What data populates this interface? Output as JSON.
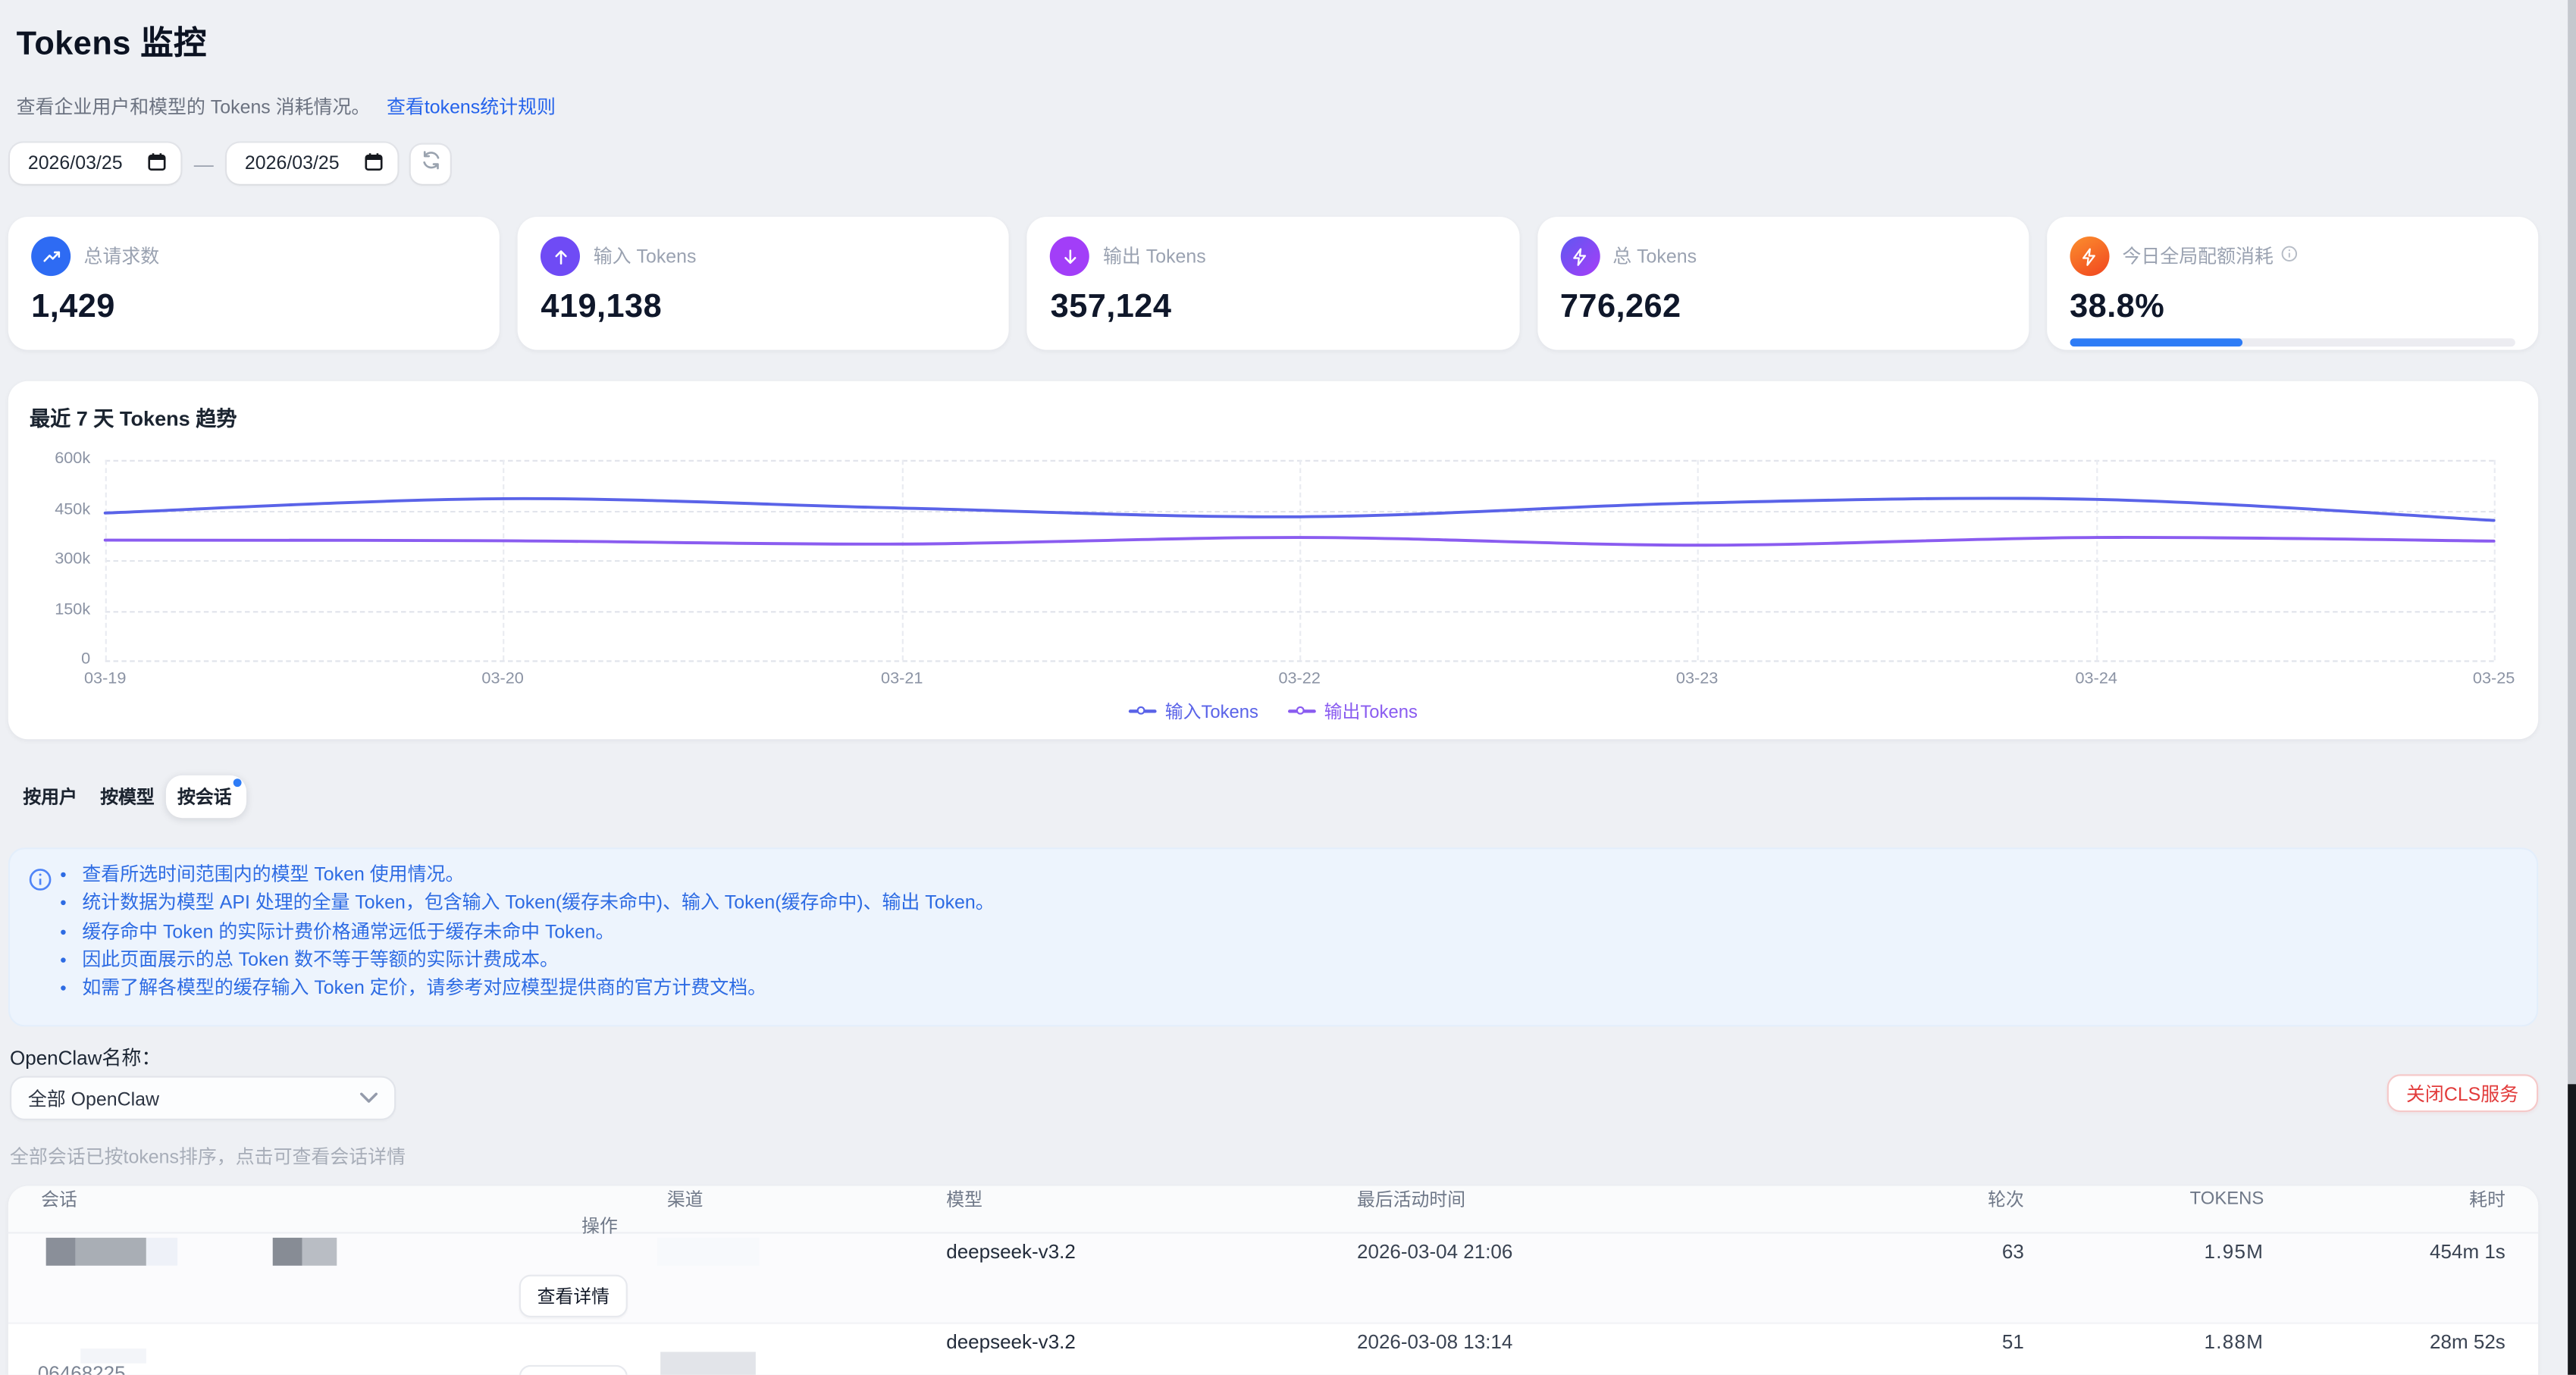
{
  "header": {
    "title": "Tokens 监控",
    "subtitle": "查看企业用户和模型的 Tokens 消耗情况。",
    "rules_link": "查看tokens统计规则"
  },
  "date_filter": {
    "start": "2026/03/25",
    "end": "2026/03/25",
    "separator": "—"
  },
  "stats": [
    {
      "label": "总请求数",
      "value": "1,429",
      "icon": "trending-up-icon",
      "icon_bg": "#2e6bf3"
    },
    {
      "label": "输入 Tokens",
      "value": "419,138",
      "icon": "arrow-up-icon",
      "icon_bg": "#6f4bf5"
    },
    {
      "label": "输出 Tokens",
      "value": "357,124",
      "icon": "arrow-down-icon",
      "icon_bg": "#a23ef8"
    },
    {
      "label": "总 Tokens",
      "value": "776,262",
      "icon": "zap-icon",
      "icon_bg": "linear-gradient(135deg,#5f58f0,#a63ef8)"
    },
    {
      "label": "今日全局配额消耗",
      "value": "38.8%",
      "icon": "zap-icon",
      "icon_bg": "linear-gradient(150deg,#fb8f2e,#f1451f)",
      "progress_percent": 38.8
    }
  ],
  "chart_data": {
    "type": "line",
    "title": "最近 7 天 Tokens 趋势",
    "x": [
      "03-19",
      "03-20",
      "03-21",
      "03-22",
      "03-23",
      "03-24",
      "03-25"
    ],
    "series": [
      {
        "name": "输入Tokens",
        "color": "#5a63e8",
        "values": [
          441000,
          484000,
          456000,
          430000,
          471000,
          482000,
          419138
        ]
      },
      {
        "name": "输出Tokens",
        "color": "#8a5cf0",
        "values": [
          360000,
          358000,
          348000,
          368000,
          345000,
          368000,
          357124
        ]
      }
    ],
    "ylim": [
      0,
      600000
    ],
    "yticks": [
      "600k",
      "450k",
      "300k",
      "150k",
      "0"
    ],
    "grid": "dashed",
    "smooth": true,
    "legend_position": "bottom"
  },
  "tabs": [
    {
      "label": "按用户",
      "active": false
    },
    {
      "label": "按模型",
      "active": false
    },
    {
      "label": "按会话",
      "active": true,
      "dot": true
    }
  ],
  "info_box": {
    "bullets": [
      "查看所选时间范围内的模型 Token 使用情况。",
      "统计数据为模型 API 处理的全量 Token，包含输入 Token(缓存未命中)、输入 Token(缓存命中)、输出 Token。",
      "缓存命中 Token 的实际计费价格通常远低于缓存未命中 Token。",
      "因此页面展示的总 Token 数不等于等额的实际计费成本。",
      "如需了解各模型的缓存输入 Token 定价，请参考对应模型提供商的官方计费文档。"
    ]
  },
  "session_section": {
    "filter_label": "OpenClaw名称：",
    "selected_option": "全部 OpenClaw",
    "close_cls_button": "关闭CLS服务",
    "hint": "全部会话已按tokens排序，点击可查看会话详情"
  },
  "table": {
    "columns": [
      "会话",
      "渠道",
      "模型",
      "最后活动时间",
      "轮次",
      "TOKENS",
      "耗时",
      "操作"
    ],
    "action_label": "查看详情",
    "rows": [
      {
        "session": "",
        "model": "deepseek-v3.2",
        "last_active": "2026-03-04 21:06",
        "turns": "63",
        "tokens": "1.95M",
        "duration": "454m 1s"
      },
      {
        "session": "06468225",
        "model": "deepseek-v3.2",
        "last_active": "2026-03-08 13:14",
        "turns": "51",
        "tokens": "1.88M",
        "duration": "28m 52s"
      }
    ]
  },
  "colors": {
    "page_bg": "#eef0f4",
    "accent_blue": "#2e7cf6",
    "link_blue": "#2563eb",
    "danger_red": "#e23b3b",
    "input_line": "#5a63e8",
    "output_line": "#8a5cf0"
  }
}
